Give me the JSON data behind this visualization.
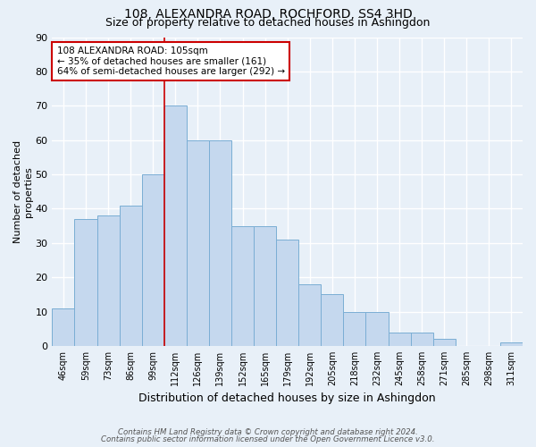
{
  "title": "108, ALEXANDRA ROAD, ROCHFORD, SS4 3HD",
  "subtitle": "Size of property relative to detached houses in Ashingdon",
  "xlabel": "Distribution of detached houses by size in Ashingdon",
  "ylabel": "Number of detached\nproperties",
  "categories": [
    "46sqm",
    "59sqm",
    "73sqm",
    "86sqm",
    "99sqm",
    "112sqm",
    "126sqm",
    "139sqm",
    "152sqm",
    "165sqm",
    "179sqm",
    "192sqm",
    "205sqm",
    "218sqm",
    "232sqm",
    "245sqm",
    "258sqm",
    "271sqm",
    "285sqm",
    "298sqm",
    "311sqm"
  ],
  "values": [
    11,
    37,
    38,
    41,
    50,
    70,
    60,
    60,
    35,
    35,
    31,
    18,
    15,
    10,
    10,
    4,
    4,
    2,
    0,
    0,
    1
  ],
  "bar_color": "#c5d8ee",
  "bar_edge_color": "#7aaed4",
  "bg_color": "#e8f0f8",
  "grid_color": "#ffffff",
  "vline_x": 4.5,
  "vline_color": "#cc0000",
  "annotation_text": "108 ALEXANDRA ROAD: 105sqm\n← 35% of detached houses are smaller (161)\n64% of semi-detached houses are larger (292) →",
  "annotation_box_color": "#ffffff",
  "annotation_box_edge": "#cc0000",
  "footer_line1": "Contains HM Land Registry data © Crown copyright and database right 2024.",
  "footer_line2": "Contains public sector information licensed under the Open Government Licence v3.0.",
  "ylim": [
    0,
    90
  ],
  "yticks": [
    0,
    10,
    20,
    30,
    40,
    50,
    60,
    70,
    80,
    90
  ]
}
